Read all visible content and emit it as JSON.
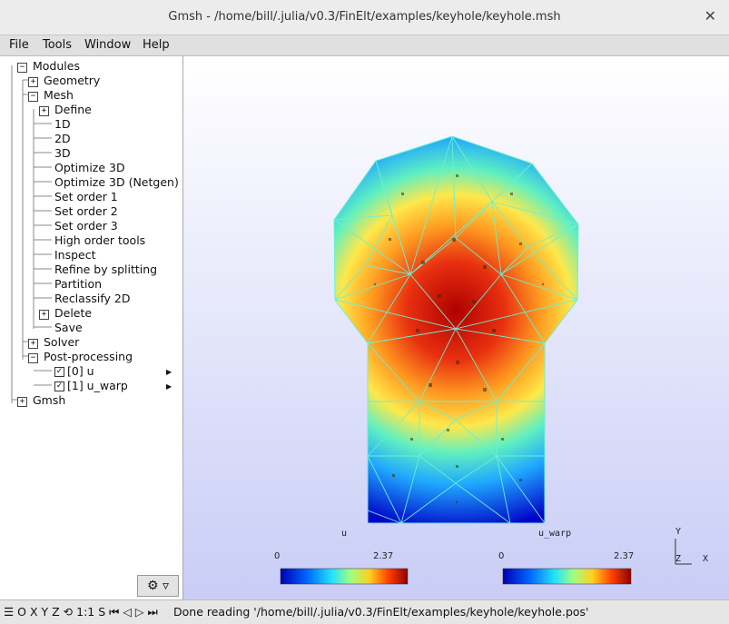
{
  "window": {
    "title": "Gmsh - /home/bill/.julia/v0.3/FinElt/examples/keyhole/keyhole.msh",
    "close": "✕"
  },
  "menu": [
    "File",
    "Tools",
    "Window",
    "Help"
  ],
  "tree": {
    "modules": "Modules",
    "geometry": "Geometry",
    "mesh": "Mesh",
    "mesh_items": [
      "Define",
      "1D",
      "2D",
      "3D",
      "Optimize 3D",
      "Optimize 3D (Netgen)",
      "Set order 1",
      "Set order 2",
      "Set order 3",
      "High order tools",
      "Inspect",
      "Refine by splitting",
      "Partition",
      "Reclassify 2D",
      "Delete",
      "Save"
    ],
    "solver": "Solver",
    "post": "Post-processing",
    "views": [
      "[0] u",
      "[1] u_warp"
    ],
    "gmsh": "Gmsh"
  },
  "scales": [
    {
      "name": "u",
      "min": "0",
      "max": "2.37"
    },
    {
      "name": "u_warp",
      "min": "0",
      "max": "2.37"
    }
  ],
  "axes": {
    "y": "Y",
    "z": "Z",
    "x": "X"
  },
  "status": {
    "left_icons": "☰ O X Y Z ⟲ 1:1 S ⏮ ◁ ▷ ⏭",
    "message": "Done reading '/home/bill/.julia/v0.3/FinElt/examples/keyhole/keyhole.pos'"
  },
  "colors": {
    "cold": "#0000c8",
    "mid": "#30c8ff",
    "warm": "#ffd040",
    "hot": "#b00000",
    "mesh": "#6cf0d0"
  }
}
